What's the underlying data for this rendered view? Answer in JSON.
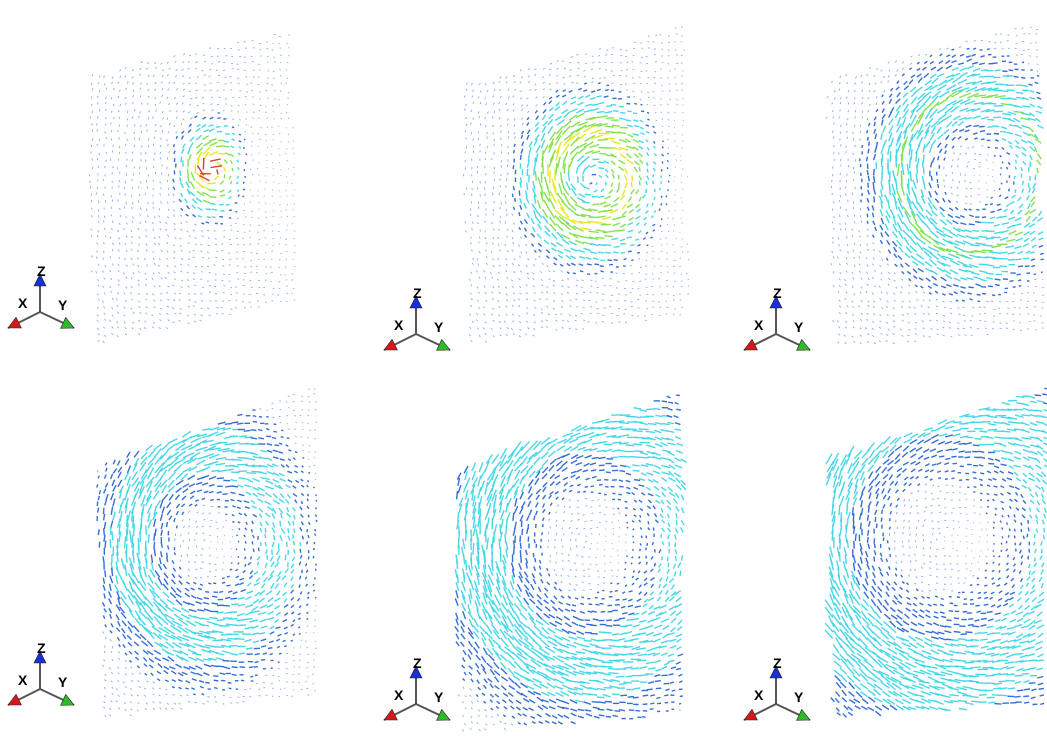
{
  "panels": [
    {
      "id": "p1",
      "stage": 1
    },
    {
      "id": "p2",
      "stage": 2
    },
    {
      "id": "p3",
      "stage": 3
    },
    {
      "id": "p4",
      "stage": 4
    },
    {
      "id": "p5",
      "stage": 5
    },
    {
      "id": "p6",
      "stage": 6
    }
  ],
  "axes": {
    "x_label": "X",
    "y_label": "Y",
    "z_label": "Z"
  },
  "colors": {
    "background": "#ffffff",
    "arrow_blue": "#2a66d6",
    "arrow_cyan": "#3fd6e6",
    "arrow_green": "#7ee04a",
    "arrow_yellow": "#e6e61e",
    "arrow_red": "#e0301e",
    "triad_x": "#d81818",
    "triad_y": "#2fb82a",
    "triad_z": "#1a2fd6"
  }
}
